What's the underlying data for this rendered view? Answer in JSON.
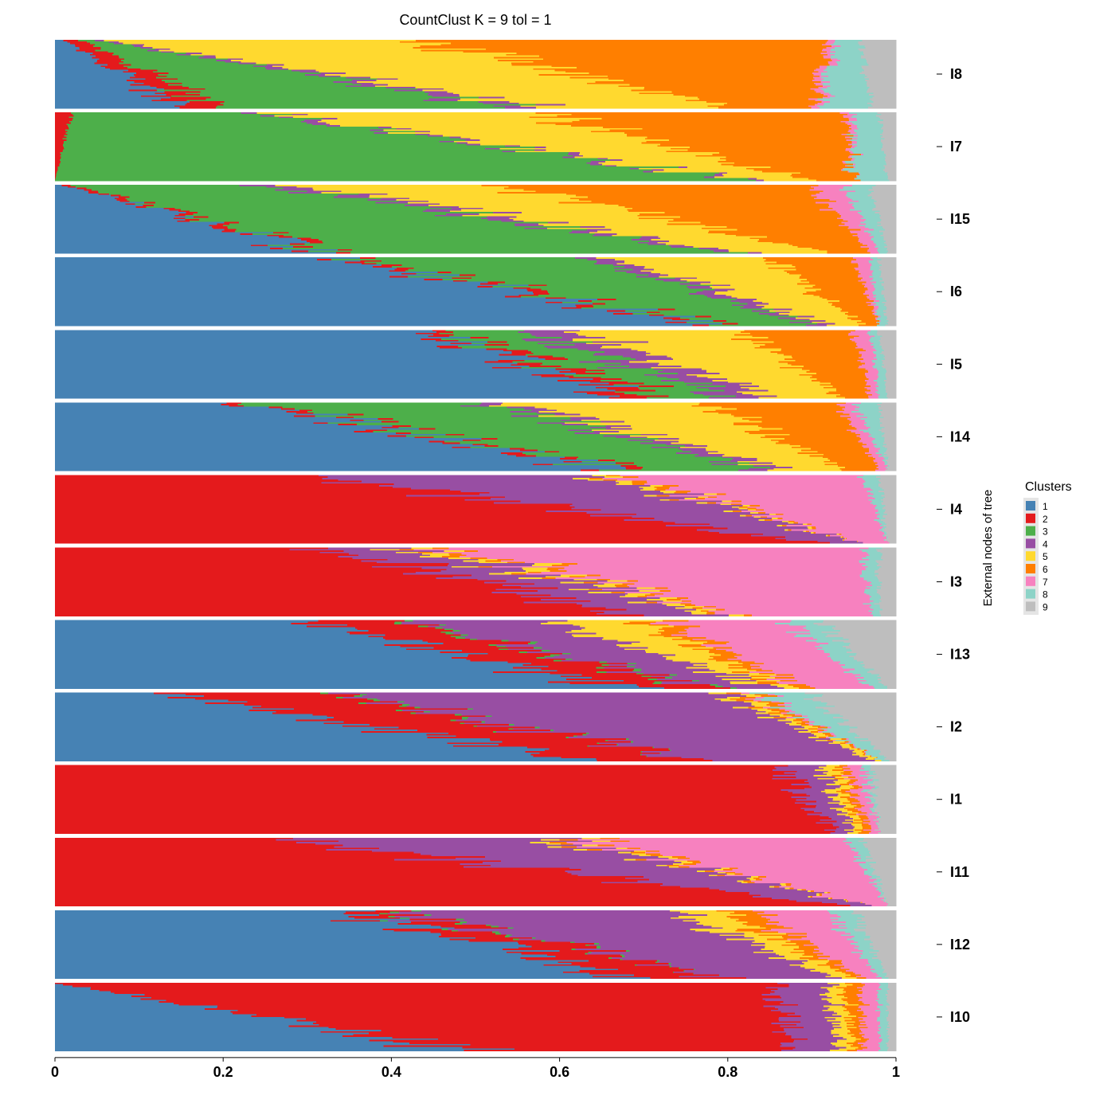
{
  "chart_data": {
    "type": "bar",
    "orientation": "horizontal-stacked",
    "title": "CountClust K =  9 tol =  1",
    "ylabel": "External nodes of tree",
    "xlim": [
      0,
      1
    ],
    "x_ticks": [
      "0",
      "0.2",
      "0.4",
      "0.6",
      "0.8",
      "1"
    ],
    "legend": {
      "title": "Clusters",
      "placement": "right",
      "entries": [
        {
          "label": "1",
          "color": "#4682B4"
        },
        {
          "label": "2",
          "color": "#E41A1C"
        },
        {
          "label": "3",
          "color": "#4DAF4A"
        },
        {
          "label": "4",
          "color": "#984EA3"
        },
        {
          "label": "5",
          "color": "#FFD92F"
        },
        {
          "label": "6",
          "color": "#FF7F00"
        },
        {
          "label": "7",
          "color": "#F781BF"
        },
        {
          "label": "8",
          "color": "#8DD3C7"
        },
        {
          "label": "9",
          "color": "#BEBEBE"
        }
      ]
    },
    "groups": [
      {
        "label": "I8",
        "start_fraction": [
          0.01,
          0.02,
          0.02,
          0.01,
          0.37,
          0.49,
          0.01,
          0.03,
          0.04
        ],
        "end_fraction": [
          0.15,
          0.05,
          0.34,
          0.04,
          0.22,
          0.1,
          0.01,
          0.06,
          0.03
        ]
      },
      {
        "label": "I7",
        "start_fraction": [
          0.0,
          0.02,
          0.22,
          0.02,
          0.31,
          0.37,
          0.01,
          0.03,
          0.02
        ],
        "end_fraction": [
          0.0,
          0.0,
          0.82,
          0.01,
          0.07,
          0.05,
          0.0,
          0.04,
          0.01
        ]
      },
      {
        "label": "I15",
        "start_fraction": [
          0.01,
          0.01,
          0.24,
          0.04,
          0.24,
          0.36,
          0.04,
          0.03,
          0.03
        ],
        "end_fraction": [
          0.32,
          0.02,
          0.46,
          0.02,
          0.1,
          0.05,
          0.01,
          0.01,
          0.01
        ]
      },
      {
        "label": "I6",
        "start_fraction": [
          0.34,
          0.02,
          0.28,
          0.03,
          0.18,
          0.1,
          0.02,
          0.01,
          0.02
        ],
        "end_fraction": [
          0.77,
          0.02,
          0.11,
          0.02,
          0.04,
          0.02,
          0.0,
          0.01,
          0.01
        ]
      },
      {
        "label": "I5",
        "start_fraction": [
          0.45,
          0.02,
          0.09,
          0.06,
          0.2,
          0.13,
          0.02,
          0.01,
          0.02
        ],
        "end_fraction": [
          0.68,
          0.05,
          0.08,
          0.05,
          0.08,
          0.03,
          0.01,
          0.01,
          0.01
        ]
      },
      {
        "label": "I14",
        "start_fraction": [
          0.23,
          0.02,
          0.27,
          0.03,
          0.22,
          0.16,
          0.02,
          0.03,
          0.02
        ],
        "end_fraction": [
          0.66,
          0.02,
          0.16,
          0.03,
          0.07,
          0.04,
          0.01,
          0.0,
          0.01
        ]
      },
      {
        "label": "I4",
        "start_fraction": [
          0.0,
          0.31,
          0.0,
          0.33,
          0.02,
          0.02,
          0.28,
          0.02,
          0.02
        ],
        "end_fraction": [
          0.0,
          0.91,
          0.0,
          0.05,
          0.0,
          0.0,
          0.03,
          0.0,
          0.01
        ]
      },
      {
        "label": "I3",
        "start_fraction": [
          0.0,
          0.32,
          0.0,
          0.11,
          0.03,
          0.02,
          0.48,
          0.02,
          0.02
        ],
        "end_fraction": [
          0.0,
          0.69,
          0.0,
          0.1,
          0.02,
          0.01,
          0.15,
          0.01,
          0.02
        ]
      },
      {
        "label": "I13",
        "start_fraction": [
          0.29,
          0.11,
          0.01,
          0.17,
          0.11,
          0.03,
          0.15,
          0.04,
          0.09
        ],
        "end_fraction": [
          0.67,
          0.1,
          0.01,
          0.07,
          0.02,
          0.02,
          0.08,
          0.02,
          0.01
        ]
      },
      {
        "label": "I2",
        "start_fraction": [
          0.14,
          0.19,
          0.01,
          0.45,
          0.02,
          0.02,
          0.01,
          0.06,
          0.1
        ],
        "end_fraction": [
          0.62,
          0.13,
          0.0,
          0.22,
          0.01,
          0.0,
          0.0,
          0.01,
          0.01
        ]
      },
      {
        "label": "I1",
        "start_fraction": [
          0.0,
          0.86,
          0.0,
          0.05,
          0.02,
          0.01,
          0.02,
          0.01,
          0.03
        ],
        "end_fraction": [
          0.0,
          0.93,
          0.0,
          0.02,
          0.01,
          0.01,
          0.01,
          0.0,
          0.02
        ]
      },
      {
        "label": "I11",
        "start_fraction": [
          0.0,
          0.26,
          0.0,
          0.33,
          0.02,
          0.02,
          0.31,
          0.02,
          0.04
        ],
        "end_fraction": [
          0.0,
          0.94,
          0.0,
          0.03,
          0.0,
          0.0,
          0.02,
          0.0,
          0.01
        ]
      },
      {
        "label": "I12",
        "start_fraction": [
          0.33,
          0.05,
          0.01,
          0.34,
          0.06,
          0.04,
          0.09,
          0.03,
          0.05
        ],
        "end_fraction": [
          0.69,
          0.11,
          0.0,
          0.13,
          0.02,
          0.01,
          0.02,
          0.01,
          0.01
        ]
      },
      {
        "label": "I10",
        "start_fraction": [
          0.0,
          0.86,
          0.0,
          0.06,
          0.02,
          0.02,
          0.02,
          0.01,
          0.01
        ],
        "end_fraction": [
          0.5,
          0.37,
          0.0,
          0.06,
          0.02,
          0.01,
          0.02,
          0.01,
          0.01
        ]
      }
    ]
  }
}
